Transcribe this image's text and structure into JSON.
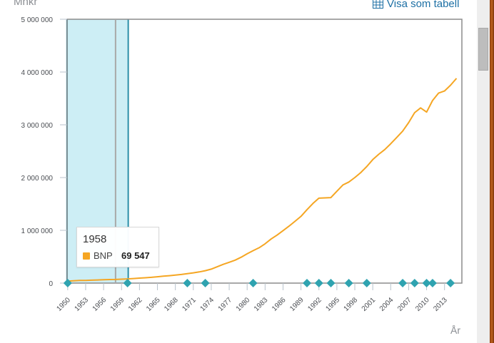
{
  "header": {
    "y_unit": "Mnkr",
    "table_link_label": "Visa som tabell",
    "table_icon": "table-grid-icon"
  },
  "tooltip": {
    "year": "1958",
    "series_name": "BNP",
    "value": "69 547"
  },
  "colors": {
    "series": "#f5a623",
    "marker": "#2fa3b0",
    "selection_fill": "#cdeef5",
    "selection_border": "#2b8fa8",
    "link": "#1c6fa4"
  },
  "chart_data": {
    "type": "line",
    "title": "",
    "xlabel": "År",
    "ylabel": "Mnkr",
    "ylim": [
      0,
      5000000
    ],
    "xlim": [
      1949.9,
      2015.9
    ],
    "grid": false,
    "legend": "none",
    "y_ticks": [
      0,
      1000000,
      2000000,
      3000000,
      4000000,
      5000000
    ],
    "y_tick_labels": [
      "0",
      "1 000 000",
      "2 000 000",
      "3 000 000",
      "4 000 000",
      "5 000 000"
    ],
    "x_ticks": [
      1950,
      1953,
      1956,
      1959,
      1962,
      1965,
      1968,
      1971,
      1974,
      1977,
      1980,
      1983,
      1986,
      1989,
      1992,
      1995,
      1998,
      2001,
      2004,
      2007,
      2010,
      2013
    ],
    "series": [
      {
        "name": "BNP",
        "x": [
          1950,
          1951,
          1952,
          1953,
          1954,
          1955,
          1956,
          1957,
          1958,
          1959,
          1960,
          1961,
          1962,
          1963,
          1964,
          1965,
          1966,
          1967,
          1968,
          1969,
          1970,
          1971,
          1972,
          1973,
          1974,
          1975,
          1976,
          1977,
          1978,
          1979,
          1980,
          1981,
          1982,
          1983,
          1984,
          1985,
          1986,
          1987,
          1988,
          1989,
          1990,
          1991,
          1992,
          1993,
          1994,
          1995,
          1996,
          1997,
          1998,
          1999,
          2000,
          2001,
          2002,
          2003,
          2004,
          2005,
          2006,
          2007,
          2008,
          2009,
          2010,
          2011,
          2012,
          2013,
          2014,
          2015
        ],
        "values": [
          38000,
          45000,
          50000,
          52000,
          55000,
          59000,
          63000,
          67000,
          69547,
          74000,
          80000,
          87000,
          94000,
          101000,
          110000,
          120000,
          131000,
          141000,
          151000,
          163000,
          180000,
          195000,
          212000,
          235000,
          265000,
          310000,
          355000,
          395000,
          435000,
          490000,
          555000,
          615000,
          670000,
          745000,
          835000,
          910000,
          995000,
          1080000,
          1170000,
          1265000,
          1390000,
          1510000,
          1610000,
          1615000,
          1620000,
          1740000,
          1860000,
          1915000,
          2000000,
          2095000,
          2210000,
          2340000,
          2440000,
          2530000,
          2640000,
          2760000,
          2880000,
          3040000,
          3230000,
          3320000,
          3240000,
          3460000,
          3600000,
          3640000,
          3750000,
          3880000
        ],
        "annotations_year_markers": [
          1950,
          1960,
          1970,
          1973,
          1981,
          1990,
          1992,
          1994,
          1997,
          2000,
          2006,
          2008,
          2010,
          2011,
          2014
        ]
      }
    ],
    "selection_range": [
      1950,
      1960
    ],
    "hover_year": 1958
  }
}
